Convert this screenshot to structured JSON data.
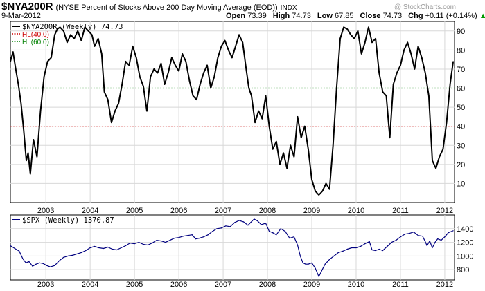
{
  "header": {
    "symbol": "$NYA200R",
    "full_name": "(NYSE Percent of Stocks Above 200 Day Moving Average (EOD))",
    "exchange": "INDX",
    "date": "9-Mar-2012",
    "watermark": "@ StockCharts.com",
    "open_label": "Open",
    "open": "73.39",
    "high_label": "High",
    "high": "74.73",
    "low_label": "Low",
    "low": "67.85",
    "close_label": "Close",
    "close": "74.73",
    "chg_label": "Chg",
    "chg": "+0.11 (+0.14%)",
    "chg_arrow": "▲"
  },
  "colors": {
    "price_line": "#000000",
    "spx_line": "#000080",
    "hl_low": "#cc0000",
    "hl_high": "#008000",
    "grid": "#d8d8d8",
    "up": "#009900"
  },
  "chart_data": [
    {
      "type": "line",
      "title": "$NYA200R (Weekly) 74.73",
      "legend": [
        "$NYA200R (Weekly) 74.73",
        "HL(40.0)",
        "HL(60.0)"
      ],
      "legend_position": "top-left",
      "ylim": [
        0,
        95
      ],
      "yticks": [
        10,
        20,
        30,
        40,
        50,
        60,
        70,
        80,
        90
      ],
      "y_labels": [
        "10",
        "20",
        "30",
        "40",
        "50",
        "60",
        "70",
        "80",
        "90"
      ],
      "xlim": [
        2002.2,
        2012.22
      ],
      "xticks": [
        "2003",
        "2004",
        "2005",
        "2006",
        "2007",
        "2008",
        "2009",
        "2010",
        "2011",
        "2012"
      ],
      "hlines": [
        40,
        60
      ],
      "series": [
        {
          "name": "$NYA200R (Weekly)",
          "x": [
            2002.2,
            2002.26,
            2002.32,
            2002.38,
            2002.44,
            2002.5,
            2002.56,
            2002.6,
            2002.65,
            2002.72,
            2002.8,
            2002.88,
            2002.96,
            2003.04,
            2003.12,
            2003.2,
            2003.26,
            2003.32,
            2003.4,
            2003.48,
            2003.56,
            2003.64,
            2003.72,
            2003.8,
            2003.88,
            2003.96,
            2004.04,
            2004.1,
            2004.18,
            2004.26,
            2004.32,
            2004.4,
            2004.48,
            2004.56,
            2004.64,
            2004.72,
            2004.8,
            2004.88,
            2004.96,
            2005.04,
            2005.12,
            2005.2,
            2005.28,
            2005.36,
            2005.44,
            2005.52,
            2005.6,
            2005.68,
            2005.76,
            2005.84,
            2005.92,
            2006.0,
            2006.08,
            2006.16,
            2006.24,
            2006.32,
            2006.4,
            2006.48,
            2006.56,
            2006.64,
            2006.72,
            2006.8,
            2006.88,
            2006.96,
            2007.04,
            2007.12,
            2007.2,
            2007.28,
            2007.36,
            2007.44,
            2007.52,
            2007.58,
            2007.64,
            2007.72,
            2007.8,
            2007.88,
            2007.96,
            2008.04,
            2008.12,
            2008.2,
            2008.28,
            2008.36,
            2008.44,
            2008.52,
            2008.6,
            2008.68,
            2008.76,
            2008.84,
            2008.92,
            2009.0,
            2009.08,
            2009.16,
            2009.24,
            2009.32,
            2009.4,
            2009.48,
            2009.56,
            2009.64,
            2009.72,
            2009.8,
            2009.88,
            2009.96,
            2010.04,
            2010.12,
            2010.2,
            2010.28,
            2010.36,
            2010.44,
            2010.52,
            2010.6,
            2010.68,
            2010.76,
            2010.84,
            2010.92,
            2011.0,
            2011.08,
            2011.16,
            2011.24,
            2011.32,
            2011.4,
            2011.48,
            2011.56,
            2011.64,
            2011.72,
            2011.8,
            2011.88,
            2011.96,
            2012.04,
            2012.12,
            2012.19
          ],
          "values": [
            74,
            79,
            70,
            62,
            52,
            38,
            22,
            26,
            15,
            33,
            24,
            48,
            66,
            74,
            76,
            88,
            91,
            92,
            90,
            84,
            88,
            86,
            90,
            85,
            92,
            90,
            88,
            82,
            86,
            78,
            58,
            54,
            42,
            48,
            52,
            62,
            74,
            72,
            82,
            76,
            66,
            61,
            48,
            66,
            70,
            68,
            73,
            62,
            68,
            76,
            72,
            69,
            78,
            74,
            64,
            56,
            54,
            62,
            68,
            72,
            60,
            66,
            76,
            82,
            85,
            80,
            76,
            82,
            88,
            84,
            70,
            60,
            56,
            42,
            48,
            44,
            56,
            40,
            28,
            32,
            20,
            26,
            18,
            30,
            24,
            45,
            34,
            40,
            28,
            12,
            6,
            4,
            6,
            10,
            7,
            30,
            60,
            86,
            92,
            91,
            88,
            86,
            90,
            78,
            84,
            92,
            84,
            86,
            68,
            58,
            56,
            34,
            62,
            68,
            72,
            80,
            84,
            78,
            70,
            82,
            76,
            68,
            56,
            22,
            18,
            24,
            28,
            42,
            62,
            74
          ]
        }
      ]
    },
    {
      "type": "line",
      "title": "$SPX (Weekly) 1370.87",
      "legend": [
        "$SPX (Weekly) 1370.87"
      ],
      "legend_position": "top-left",
      "ylim": [
        650,
        1600
      ],
      "yticks": [
        800,
        1000,
        1200,
        1400
      ],
      "y_labels": [
        "800",
        "1000",
        "1200",
        "1400"
      ],
      "xlim": [
        2002.2,
        2012.22
      ],
      "xticks": [
        "2003",
        "2004",
        "2005",
        "2006",
        "2007",
        "2008",
        "2009",
        "2010",
        "2011",
        "2012"
      ],
      "series": [
        {
          "name": "$SPX (Weekly)",
          "x": [
            2002.2,
            2002.3,
            2002.4,
            2002.48,
            2002.55,
            2002.62,
            2002.7,
            2002.78,
            2002.86,
            2002.94,
            2003.02,
            2003.1,
            2003.2,
            2003.3,
            2003.4,
            2003.5,
            2003.6,
            2003.7,
            2003.8,
            2003.9,
            2004.0,
            2004.1,
            2004.2,
            2004.3,
            2004.4,
            2004.5,
            2004.6,
            2004.7,
            2004.8,
            2004.9,
            2005.0,
            2005.1,
            2005.2,
            2005.3,
            2005.4,
            2005.5,
            2005.6,
            2005.7,
            2005.8,
            2005.9,
            2006.0,
            2006.1,
            2006.2,
            2006.3,
            2006.38,
            2006.46,
            2006.56,
            2006.66,
            2006.76,
            2006.86,
            2006.96,
            2007.06,
            2007.16,
            2007.26,
            2007.36,
            2007.46,
            2007.56,
            2007.62,
            2007.7,
            2007.78,
            2007.86,
            2007.96,
            2008.04,
            2008.12,
            2008.2,
            2008.3,
            2008.4,
            2008.5,
            2008.6,
            2008.68,
            2008.74,
            2008.8,
            2008.86,
            2008.92,
            2009.0,
            2009.08,
            2009.16,
            2009.22,
            2009.3,
            2009.4,
            2009.5,
            2009.6,
            2009.7,
            2009.8,
            2009.9,
            2010.0,
            2010.1,
            2010.2,
            2010.3,
            2010.36,
            2010.44,
            2010.52,
            2010.6,
            2010.7,
            2010.8,
            2010.9,
            2011.0,
            2011.1,
            2011.2,
            2011.3,
            2011.4,
            2011.5,
            2011.56,
            2011.6,
            2011.66,
            2011.72,
            2011.78,
            2011.84,
            2011.92,
            2012.0,
            2012.08,
            2012.19
          ],
          "values": [
            1150,
            1110,
            1070,
            960,
            900,
            920,
            850,
            880,
            900,
            890,
            860,
            840,
            860,
            930,
            980,
            1000,
            1010,
            1030,
            1050,
            1080,
            1120,
            1140,
            1120,
            1110,
            1130,
            1100,
            1090,
            1120,
            1150,
            1190,
            1180,
            1200,
            1170,
            1160,
            1190,
            1230,
            1220,
            1200,
            1230,
            1260,
            1270,
            1290,
            1300,
            1310,
            1250,
            1260,
            1280,
            1310,
            1360,
            1400,
            1410,
            1440,
            1430,
            1490,
            1520,
            1500,
            1450,
            1490,
            1540,
            1510,
            1460,
            1480,
            1360,
            1340,
            1310,
            1400,
            1360,
            1260,
            1280,
            1160,
            1000,
            900,
            880,
            880,
            900,
            820,
            700,
            780,
            880,
            950,
            1000,
            1050,
            1070,
            1100,
            1120,
            1120,
            1140,
            1180,
            1210,
            1090,
            1080,
            1100,
            1080,
            1140,
            1200,
            1230,
            1280,
            1320,
            1330,
            1350,
            1300,
            1290,
            1210,
            1150,
            1220,
            1120,
            1200,
            1250,
            1230,
            1280,
            1340,
            1370
          ]
        }
      ]
    }
  ]
}
